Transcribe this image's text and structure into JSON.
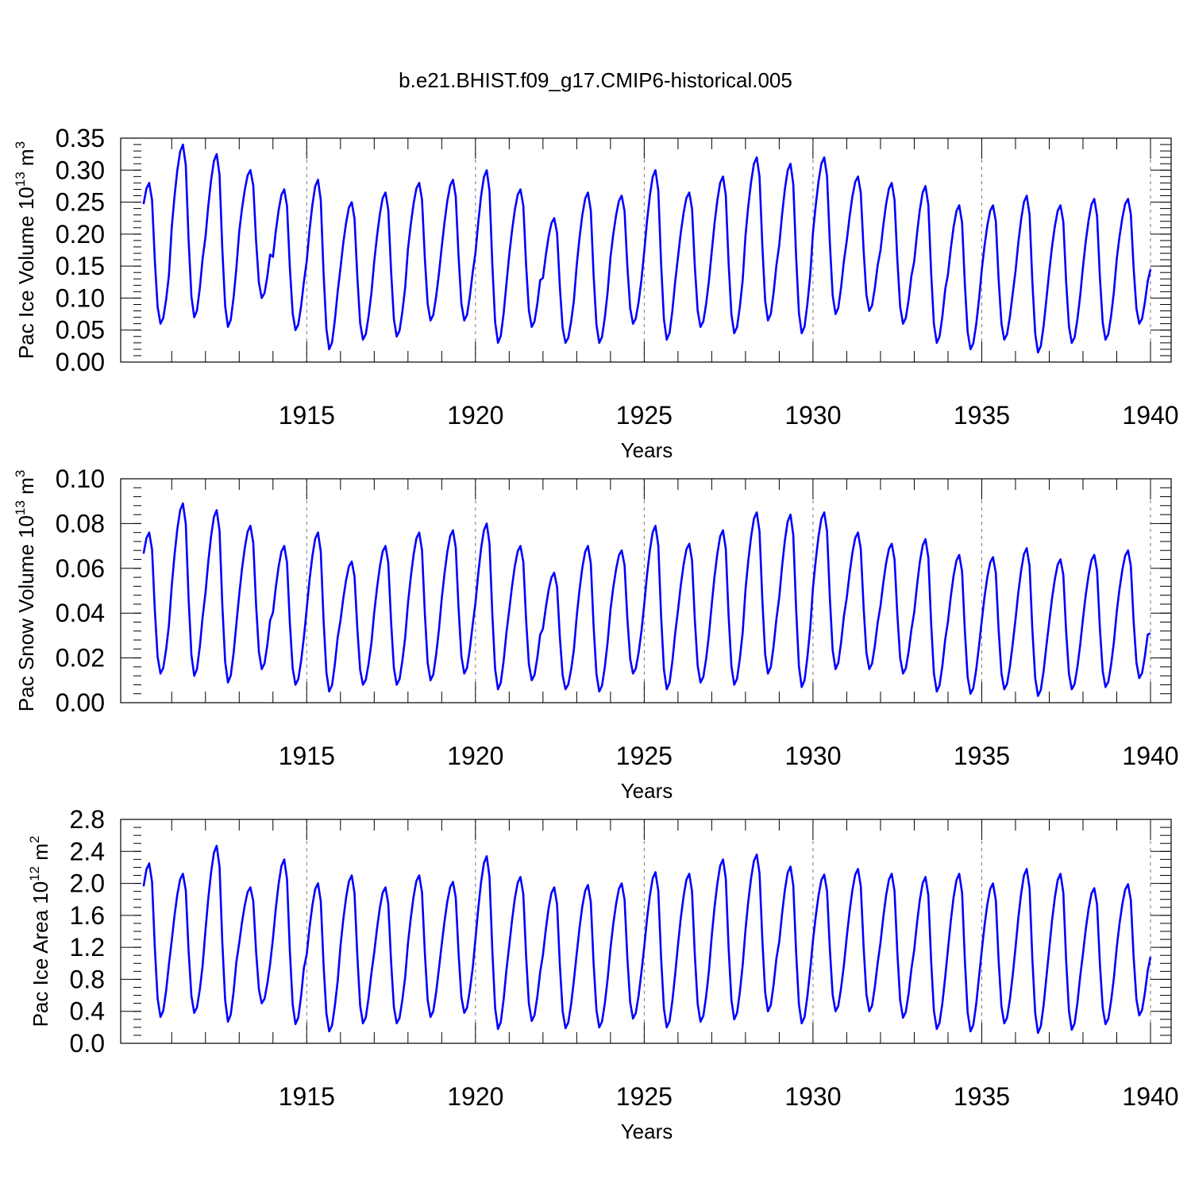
{
  "title": "b.e21.BHIST.f09_g17.CMIP6-historical.005",
  "chart_data": [
    {
      "type": "line",
      "name": "ice-volume",
      "ylabel": "Pac Ice Volume 10",
      "ylabel_exp": "13",
      "ylabel_unit": " m",
      "ylabel_unit_exp": "3",
      "xlabel": "Years",
      "xlim": [
        1910.1,
        1940.0
      ],
      "ylim": [
        0,
        0.35
      ],
      "x_ticks": [
        1915,
        1920,
        1925,
        1930,
        1935,
        1940
      ],
      "x_tick_labels": [
        "1915",
        "1920",
        "1925",
        "1930",
        "1935",
        "1940"
      ],
      "y_ticks": [
        0.0,
        0.05,
        0.1,
        0.15,
        0.2,
        0.25,
        0.3,
        0.35
      ],
      "y_tick_labels": [
        "0.00",
        "0.05",
        "0.10",
        "0.15",
        "0.20",
        "0.25",
        "0.30",
        "0.35"
      ],
      "y_minor_step": 0.01,
      "x_minor_step": 1,
      "grid": "x-dashed",
      "color": "#0000ff",
      "x_start": 1910.1,
      "annual_peaks": [
        0.28,
        0.34,
        0.325,
        0.3,
        0.27,
        0.285,
        0.25,
        0.265,
        0.28,
        0.285,
        0.3,
        0.27,
        0.225,
        0.265,
        0.26,
        0.3,
        0.265,
        0.29,
        0.32,
        0.31,
        0.32,
        0.29,
        0.28,
        0.275,
        0.245,
        0.245,
        0.26,
        0.245,
        0.255,
        0.255
      ],
      "annual_mins": [
        0.06,
        0.07,
        0.055,
        0.1,
        0.05,
        0.02,
        0.035,
        0.04,
        0.065,
        0.065,
        0.03,
        0.055,
        0.03,
        0.03,
        0.06,
        0.035,
        0.055,
        0.045,
        0.065,
        0.045,
        0.075,
        0.08,
        0.06,
        0.03,
        0.02,
        0.035,
        0.015,
        0.03,
        0.035,
        0.06
      ],
      "end_value": 0.145
    },
    {
      "type": "line",
      "name": "snow-volume",
      "ylabel": "Pac Snow Volume 10",
      "ylabel_exp": "13",
      "ylabel_unit": " m",
      "ylabel_unit_exp": "3",
      "xlabel": "Years",
      "xlim": [
        1910.1,
        1940.0
      ],
      "ylim": [
        0,
        0.1
      ],
      "x_ticks": [
        1915,
        1920,
        1925,
        1930,
        1935,
        1940
      ],
      "x_tick_labels": [
        "1915",
        "1920",
        "1925",
        "1930",
        "1935",
        "1940"
      ],
      "y_ticks": [
        0.0,
        0.02,
        0.04,
        0.06,
        0.08,
        0.1
      ],
      "y_tick_labels": [
        "0.00",
        "0.02",
        "0.04",
        "0.06",
        "0.08",
        "0.10"
      ],
      "y_minor_step": 0.004,
      "x_minor_step": 1,
      "grid": "x-dashed",
      "color": "#0000ff",
      "x_start": 1910.1,
      "annual_peaks": [
        0.076,
        0.089,
        0.086,
        0.079,
        0.07,
        0.076,
        0.063,
        0.07,
        0.076,
        0.077,
        0.08,
        0.07,
        0.058,
        0.07,
        0.068,
        0.079,
        0.071,
        0.077,
        0.085,
        0.084,
        0.085,
        0.076,
        0.071,
        0.073,
        0.066,
        0.065,
        0.069,
        0.064,
        0.066,
        0.068
      ],
      "annual_mins": [
        0.013,
        0.012,
        0.009,
        0.015,
        0.008,
        0.005,
        0.008,
        0.008,
        0.01,
        0.013,
        0.006,
        0.01,
        0.006,
        0.005,
        0.013,
        0.006,
        0.009,
        0.008,
        0.013,
        0.007,
        0.015,
        0.015,
        0.013,
        0.005,
        0.004,
        0.006,
        0.003,
        0.006,
        0.007,
        0.011
      ],
      "end_value": 0.031
    },
    {
      "type": "line",
      "name": "ice-area",
      "ylabel": "Pac Ice Area 10",
      "ylabel_exp": "12",
      "ylabel_unit": " m",
      "ylabel_unit_exp": "2",
      "xlabel": "Years",
      "xlim": [
        1910.1,
        1940.0
      ],
      "ylim": [
        0,
        2.8
      ],
      "x_ticks": [
        1915,
        1920,
        1925,
        1930,
        1935,
        1940
      ],
      "x_tick_labels": [
        "1915",
        "1920",
        "1925",
        "1930",
        "1935",
        "1940"
      ],
      "y_ticks": [
        0.0,
        0.4,
        0.8,
        1.2,
        1.6,
        2.0,
        2.4,
        2.8
      ],
      "y_tick_labels": [
        "0.0",
        "0.4",
        "0.8",
        "1.2",
        "1.6",
        "2.0",
        "2.4",
        "2.8"
      ],
      "y_minor_step": 0.1,
      "x_minor_step": 1,
      "grid": "x-dashed",
      "color": "#0000ff",
      "x_start": 1910.1,
      "annual_peaks": [
        2.25,
        2.12,
        2.47,
        1.95,
        2.3,
        2.0,
        2.1,
        1.95,
        2.1,
        2.02,
        2.34,
        2.08,
        1.95,
        1.98,
        2.0,
        2.14,
        2.12,
        2.3,
        2.36,
        2.21,
        2.11,
        2.18,
        2.12,
        2.08,
        2.12,
        2.0,
        2.18,
        2.12,
        1.94,
        1.99
      ],
      "annual_mins": [
        0.33,
        0.38,
        0.27,
        0.5,
        0.24,
        0.15,
        0.25,
        0.25,
        0.33,
        0.38,
        0.18,
        0.28,
        0.19,
        0.2,
        0.31,
        0.2,
        0.27,
        0.3,
        0.4,
        0.25,
        0.4,
        0.4,
        0.32,
        0.18,
        0.15,
        0.25,
        0.13,
        0.17,
        0.24,
        0.35
      ],
      "end_value": 1.08
    }
  ]
}
